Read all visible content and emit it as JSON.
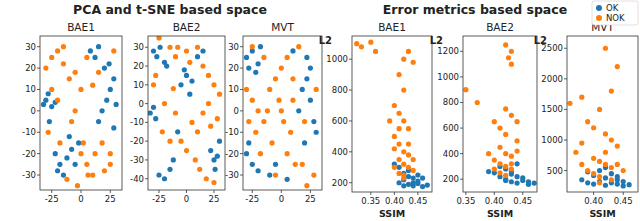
{
  "group_titles": [
    "PCA and t-SNE based space",
    "Error metrics based space"
  ],
  "chart_data": [
    {
      "type": "scatter",
      "title": "BAE1",
      "xlim": [
        -35,
        35
      ],
      "ylim": [
        -37,
        35
      ],
      "xticks": [
        -25,
        0,
        25
      ],
      "yticks": [
        -30,
        -20,
        -10,
        0,
        10,
        20,
        30
      ],
      "series": [
        {
          "name": "OK",
          "color": "#1f77b4",
          "x": [
            -30,
            -28,
            -25,
            -22,
            -27,
            -32,
            -20,
            -18,
            -12,
            -8,
            -22,
            -15,
            -5,
            15,
            18,
            22,
            25,
            28,
            20,
            12,
            8,
            15,
            24,
            28,
            30,
            -2,
            -10
          ],
          "values": [
            5,
            8,
            2,
            4,
            -5,
            3,
            -28,
            -25,
            -22,
            -18,
            -20,
            -30,
            -25,
            -5,
            0,
            5,
            10,
            15,
            20,
            25,
            28,
            30,
            22,
            -8,
            3,
            -15,
            -12
          ]
        },
        {
          "name": "NOK",
          "color": "#ff7f0e",
          "x": [
            -30,
            -25,
            -20,
            -15,
            -10,
            -5,
            0,
            5,
            10,
            -28,
            -18,
            -8,
            2,
            12,
            20,
            25,
            -12,
            -3,
            6,
            0,
            -20,
            -25,
            15,
            28,
            -15,
            5,
            10,
            -5,
            18,
            25
          ],
          "values": [
            20,
            25,
            28,
            22,
            15,
            18,
            -20,
            -25,
            -30,
            -10,
            -15,
            -5,
            -15,
            -20,
            -28,
            -25,
            -32,
            -35,
            -30,
            10,
            5,
            10,
            18,
            28,
            30,
            25,
            12,
            0,
            -15,
            -20
          ]
        }
      ]
    },
    {
      "type": "scatter",
      "title": "BAE2",
      "xlim": [
        -35,
        35
      ],
      "ylim": [
        -46,
        36
      ],
      "xticks": [
        -25,
        0,
        25
      ],
      "yticks": [
        -40,
        -30,
        -20,
        -10,
        0,
        10,
        20,
        30
      ],
      "series": [
        {
          "name": "OK",
          "color": "#1f77b4",
          "x": [
            -30,
            -27,
            -24,
            -20,
            -33,
            -30,
            -28,
            -5,
            0,
            3,
            -2,
            5,
            22,
            25,
            28,
            30,
            26,
            -25,
            -20,
            -15,
            -12,
            10,
            15,
            -8,
            -18
          ],
          "values": [
            28,
            25,
            30,
            22,
            -5,
            -2,
            -8,
            10,
            15,
            5,
            18,
            12,
            -25,
            -30,
            -28,
            -20,
            -35,
            -38,
            -40,
            -35,
            -30,
            25,
            28,
            -15,
            20
          ]
        },
        {
          "name": "NOK",
          "color": "#ff7f0e",
          "x": [
            -25,
            -15,
            -10,
            0,
            10,
            15,
            20,
            25,
            30,
            -30,
            -20,
            -10,
            5,
            15,
            22,
            28,
            -5,
            0,
            8,
            12,
            -22,
            -15,
            18,
            25,
            -28,
            -8,
            3,
            10,
            20,
            -12
          ],
          "values": [
            35,
            30,
            25,
            28,
            30,
            20,
            15,
            10,
            5,
            10,
            0,
            -5,
            -10,
            -5,
            -12,
            -8,
            -20,
            -25,
            -30,
            -35,
            -15,
            -20,
            -40,
            -42,
            15,
            30,
            22,
            -15,
            0,
            8
          ]
        }
      ]
    },
    {
      "type": "scatter",
      "title": "MVT",
      "xlim": [
        -33,
        35
      ],
      "ylim": [
        -37,
        35
      ],
      "xticks": [
        -25,
        0,
        25
      ],
      "yticks": [
        -30,
        -20,
        -10,
        0,
        10,
        20,
        30
      ],
      "series": [
        {
          "name": "OK",
          "color": "#1f77b4",
          "x": [
            -30,
            -25,
            -20,
            -18,
            -28,
            -22,
            -30,
            -25,
            -20,
            -28,
            18,
            22,
            25,
            28,
            20,
            15,
            25,
            30,
            22,
            -10,
            -5,
            10,
            5
          ],
          "values": [
            25,
            28,
            22,
            30,
            20,
            18,
            -20,
            -25,
            -28,
            -15,
            10,
            15,
            5,
            -5,
            -15,
            0,
            20,
            -10,
            25,
            -30,
            -25,
            28,
            -32
          ]
        },
        {
          "name": "NOK",
          "color": "#ff7f0e",
          "x": [
            -30,
            -25,
            -20,
            -15,
            -10,
            -5,
            0,
            5,
            10,
            15,
            -28,
            -22,
            -12,
            -2,
            8,
            18,
            28,
            -18,
            -8,
            2,
            12,
            22,
            -25,
            -15,
            0,
            10,
            20,
            30,
            -5,
            5
          ],
          "values": [
            10,
            5,
            0,
            -5,
            10,
            15,
            20,
            25,
            15,
            30,
            -5,
            -10,
            0,
            5,
            -10,
            -25,
            -30,
            -20,
            -15,
            -5,
            -25,
            -35,
            30,
            25,
            0,
            5,
            -5,
            10,
            -30,
            -20
          ]
        }
      ]
    },
    {
      "type": "scatter",
      "title": "BAE1",
      "xlabel": "SSIM",
      "ylabel": "L2",
      "xlim": [
        0.31,
        0.48
      ],
      "ylim": [
        140,
        1150
      ],
      "xticks": [
        0.35,
        {
          "value": 0.4,
          "label": "0.40"
        },
        0.45
      ],
      "yticks": [
        200,
        400,
        600,
        800,
        1000
      ],
      "series": [
        {
          "name": "OK",
          "color": "#1f77b4",
          "x": [
            0.41,
            0.42,
            0.43,
            0.44,
            0.45,
            0.46,
            0.42,
            0.43,
            0.44,
            0.41,
            0.45,
            0.47,
            0.43,
            0.44,
            0.42,
            0.46,
            0.4,
            0.45
          ],
          "values": [
            200,
            220,
            190,
            180,
            210,
            175,
            260,
            240,
            230,
            300,
            250,
            185,
            280,
            200,
            180,
            230,
            320,
            195
          ]
        },
        {
          "name": "NOK",
          "color": "#ff7f0e",
          "x": [
            0.32,
            0.33,
            0.35,
            0.36,
            0.42,
            0.43,
            0.44,
            0.41,
            0.42,
            0.4,
            0.42,
            0.41,
            0.43,
            0.4,
            0.41,
            0.42,
            0.43,
            0.41,
            0.4,
            0.42,
            0.44,
            0.43,
            0.41,
            0.39,
            0.42,
            0.4,
            0.43,
            0.41,
            0.42,
            0.44
          ],
          "values": [
            1100,
            1080,
            1110,
            1050,
            1000,
            1050,
            980,
            900,
            800,
            700,
            600,
            650,
            550,
            500,
            450,
            400,
            380,
            350,
            300,
            320,
            280,
            450,
            550,
            600,
            250,
            420,
            300,
            260,
            230,
            350
          ]
        }
      ]
    },
    {
      "type": "scatter",
      "title": "BAE2",
      "xlabel": "SSIM",
      "ylabel": "L2",
      "xlim": [
        0.345,
        0.475
      ],
      "ylim": [
        100,
        1320
      ],
      "xticks": [
        0.35,
        {
          "value": 0.4,
          "label": "0.40"
        },
        0.45
      ],
      "yticks": [
        200,
        400,
        600,
        800,
        1000,
        1200
      ],
      "series": [
        {
          "name": "OK",
          "color": "#1f77b4",
          "x": [
            0.4,
            0.41,
            0.42,
            0.43,
            0.44,
            0.45,
            0.46,
            0.42,
            0.43,
            0.44,
            0.45,
            0.41,
            0.43,
            0.46,
            0.44,
            0.42,
            0.47,
            0.39
          ],
          "values": [
            250,
            220,
            200,
            180,
            170,
            190,
            160,
            280,
            240,
            220,
            210,
            300,
            260,
            180,
            320,
            190,
            170,
            260
          ]
        },
        {
          "name": "NOK",
          "color": "#ff7f0e",
          "x": [
            0.35,
            0.37,
            0.42,
            0.43,
            0.425,
            0.43,
            0.4,
            0.41,
            0.42,
            0.43,
            0.44,
            0.41,
            0.42,
            0.43,
            0.4,
            0.41,
            0.42,
            0.44,
            0.43,
            0.41,
            0.39,
            0.42,
            0.44,
            0.4,
            0.43,
            0.42
          ],
          "values": [
            900,
            800,
            1250,
            1200,
            1150,
            1100,
            650,
            600,
            550,
            700,
            500,
            450,
            400,
            380,
            350,
            320,
            300,
            420,
            280,
            250,
            400,
            750,
            650,
            280,
            320,
            230
          ]
        }
      ]
    },
    {
      "type": "scatter",
      "title": "MVT",
      "xlabel": "SSIM",
      "ylabel": "L2",
      "legend": "upper right",
      "xlim": [
        0.355,
        0.475
      ],
      "ylim": [
        150,
        2700
      ],
      "xticks": [
        {
          "value": 0.4,
          "label": "0.40"
        },
        0.45
      ],
      "yticks": [
        500,
        1000,
        1500,
        2000,
        2500
      ],
      "series": [
        {
          "name": "OK",
          "color": "#1f77b4",
          "x": [
            0.38,
            0.39,
            0.4,
            0.41,
            0.42,
            0.43,
            0.44,
            0.45,
            0.46,
            0.4,
            0.42,
            0.44,
            0.41,
            0.43,
            0.39,
            0.45,
            0.42,
            0.44
          ],
          "values": [
            350,
            300,
            280,
            320,
            260,
            300,
            280,
            250,
            270,
            420,
            380,
            350,
            500,
            450,
            480,
            320,
            550,
            400
          ]
        },
        {
          "name": "NOK",
          "color": "#ff7f0e",
          "x": [
            0.36,
            0.38,
            0.42,
            0.44,
            0.43,
            0.41,
            0.39,
            0.4,
            0.42,
            0.43,
            0.44,
            0.37,
            0.38,
            0.4,
            0.41,
            0.42,
            0.43,
            0.39,
            0.4,
            0.41,
            0.42,
            0.44,
            0.45,
            0.43,
            0.41,
            0.38
          ],
          "values": [
            1600,
            1700,
            2500,
            2200,
            1800,
            1500,
            1300,
            1200,
            1100,
            1000,
            900,
            800,
            600,
            700,
            650,
            600,
            550,
            500,
            450,
            400,
            800,
            600,
            500,
            350,
            300,
            950
          ]
        }
      ]
    }
  ]
}
